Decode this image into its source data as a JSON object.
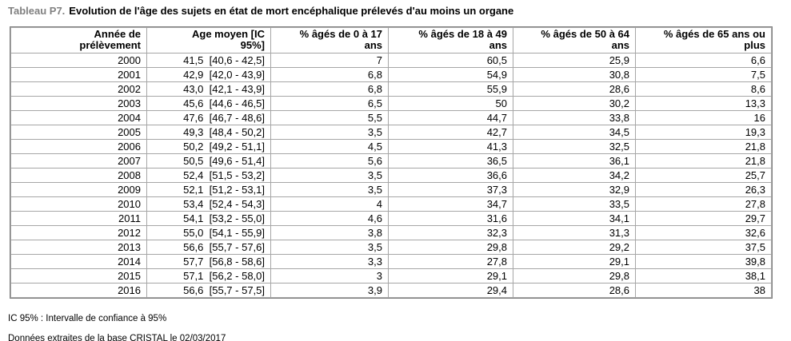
{
  "page": {
    "title_prefix": "Tableau P7.",
    "title_text": "Evolution de l'âge des sujets en état de mort encéphalique prélevés d'au moins un organe"
  },
  "table": {
    "columns": [
      "Année de\nprélèvement",
      "Age moyen [IC\n95%]",
      "% âgés de 0 à 17\nans",
      "% âgés de 18 à 49\nans",
      "% âgés de 50 à 64\nans",
      "% âgés de 65 ans ou\nplus"
    ],
    "rows": [
      [
        "2000",
        "41,5  [40,6 - 42,5]",
        "7",
        "60,5",
        "25,9",
        "6,6"
      ],
      [
        "2001",
        "42,9  [42,0 - 43,9]",
        "6,8",
        "54,9",
        "30,8",
        "7,5"
      ],
      [
        "2002",
        "43,0  [42,1 - 43,9]",
        "6,8",
        "55,9",
        "28,6",
        "8,6"
      ],
      [
        "2003",
        "45,6  [44,6 - 46,5]",
        "6,5",
        "50",
        "30,2",
        "13,3"
      ],
      [
        "2004",
        "47,6  [46,7 - 48,6]",
        "5,5",
        "44,7",
        "33,8",
        "16"
      ],
      [
        "2005",
        "49,3  [48,4 - 50,2]",
        "3,5",
        "42,7",
        "34,5",
        "19,3"
      ],
      [
        "2006",
        "50,2  [49,2 - 51,1]",
        "4,5",
        "41,3",
        "32,5",
        "21,8"
      ],
      [
        "2007",
        "50,5  [49,6 - 51,4]",
        "5,6",
        "36,5",
        "36,1",
        "21,8"
      ],
      [
        "2008",
        "52,4  [51,5 - 53,2]",
        "3,5",
        "36,6",
        "34,2",
        "25,7"
      ],
      [
        "2009",
        "52,1  [51,2 - 53,1]",
        "3,5",
        "37,3",
        "32,9",
        "26,3"
      ],
      [
        "2010",
        "53,4  [52,4 - 54,3]",
        "4",
        "34,7",
        "33,5",
        "27,8"
      ],
      [
        "2011",
        "54,1  [53,2 - 55,0]",
        "4,6",
        "31,6",
        "34,1",
        "29,7"
      ],
      [
        "2012",
        "55,0  [54,1 - 55,9]",
        "3,8",
        "32,3",
        "31,3",
        "32,6"
      ],
      [
        "2013",
        "56,6  [55,7 - 57,6]",
        "3,5",
        "29,8",
        "29,2",
        "37,5"
      ],
      [
        "2014",
        "57,7  [56,8 - 58,6]",
        "3,3",
        "27,8",
        "29,1",
        "39,8"
      ],
      [
        "2015",
        "57,1  [56,2 - 58,0]",
        "3",
        "29,1",
        "29,8",
        "38,1"
      ],
      [
        "2016",
        "56,6  [55,7 - 57,5]",
        "3,9",
        "29,4",
        "28,6",
        "38"
      ]
    ]
  },
  "footnotes": {
    "ic": "IC 95% : Intervalle de confiance à 95%",
    "source": "Données extraites de la base CRISTAL le 02/03/2017"
  },
  "colors": {
    "title_prefix": "#808080",
    "outer_border": "#7f7f7f",
    "inner_border": "#a6a6a6",
    "text": "#000000",
    "background": "#ffffff"
  }
}
